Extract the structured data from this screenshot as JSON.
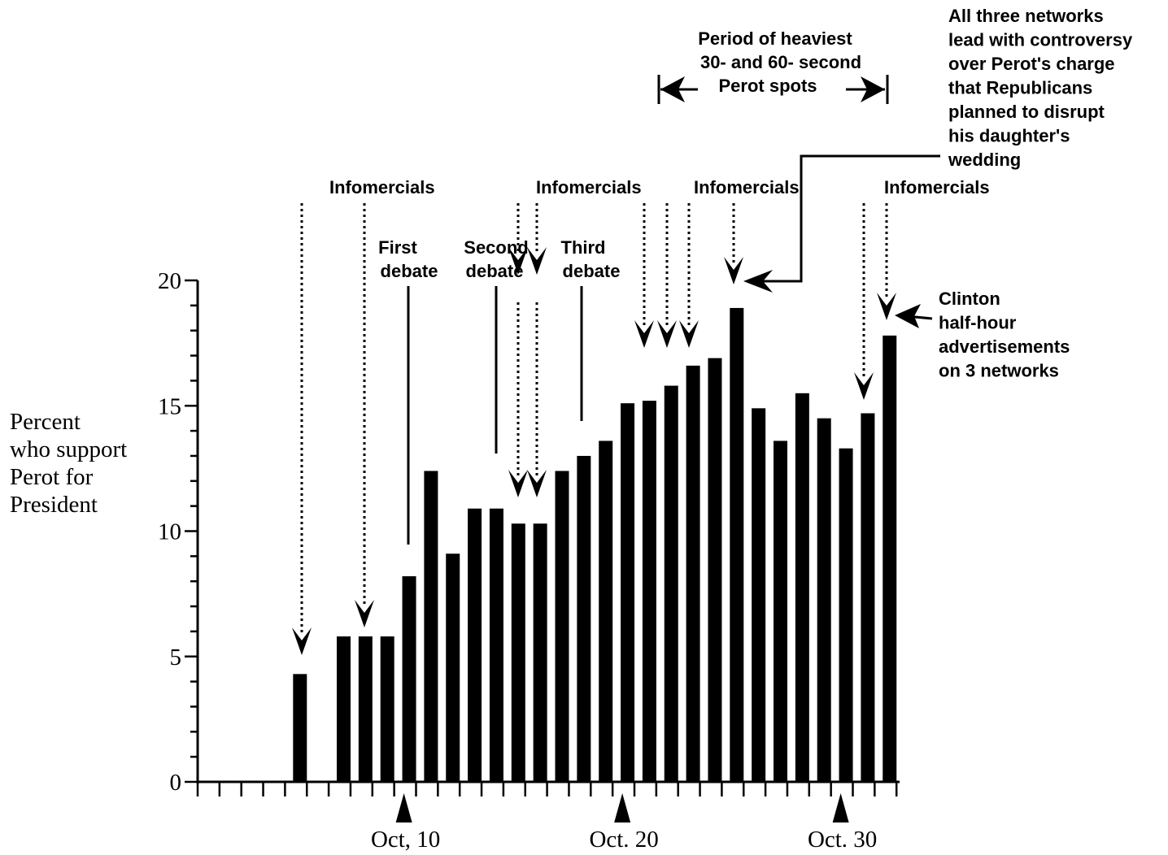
{
  "chart_data": {
    "type": "bar",
    "ylabel": [
      "Percent",
      "who support",
      "Perot for",
      "President"
    ],
    "ylim": [
      0,
      20
    ],
    "yticks": [
      "0",
      "5",
      "10",
      "15",
      "20"
    ],
    "x_dates": [
      "Oct. 5",
      "Oct. 6",
      "Oct. 7",
      "Oct. 8",
      "Oct. 9",
      "Oct. 10",
      "Oct. 11",
      "Oct. 12",
      "Oct. 13",
      "Oct. 14",
      "Oct. 15",
      "Oct. 16",
      "Oct. 17",
      "Oct. 18",
      "Oct. 19",
      "Oct. 20",
      "Oct. 21",
      "Oct. 22",
      "Oct. 23",
      "Oct. 24",
      "Oct. 25",
      "Oct. 26",
      "Oct. 27",
      "Oct. 28",
      "Oct. 29",
      "Oct. 30",
      "Oct. 31",
      "Nov. 1"
    ],
    "xtick_labels": [
      {
        "date": "Oct. 10",
        "label": "Oct, 10"
      },
      {
        "date": "Oct. 20",
        "label": "Oct. 20"
      },
      {
        "date": "Oct. 30",
        "label": "Oct. 30"
      }
    ],
    "bars": [
      {
        "date": "Oct. 5",
        "value": 4.3
      },
      {
        "date": "Oct. 7",
        "value": 5.8
      },
      {
        "date": "Oct. 8",
        "value": 5.8
      },
      {
        "date": "Oct. 9",
        "value": 5.8
      },
      {
        "date": "Oct. 10",
        "value": 8.2
      },
      {
        "date": "Oct. 11",
        "value": 12.4
      },
      {
        "date": "Oct. 12",
        "value": 9.1
      },
      {
        "date": "Oct. 13",
        "value": 10.9
      },
      {
        "date": "Oct. 14",
        "value": 10.9
      },
      {
        "date": "Oct. 15",
        "value": 10.3
      },
      {
        "date": "Oct. 16",
        "value": 10.3
      },
      {
        "date": "Oct. 17",
        "value": 12.4
      },
      {
        "date": "Oct. 18",
        "value": 13.0
      },
      {
        "date": "Oct. 19",
        "value": 13.6
      },
      {
        "date": "Oct. 20",
        "value": 15.1
      },
      {
        "date": "Oct. 21",
        "value": 15.2
      },
      {
        "date": "Oct. 22",
        "value": 15.8
      },
      {
        "date": "Oct. 23",
        "value": 16.6
      },
      {
        "date": "Oct. 24",
        "value": 16.9
      },
      {
        "date": "Oct. 25",
        "value": 18.9
      },
      {
        "date": "Oct. 26",
        "value": 14.9
      },
      {
        "date": "Oct. 27",
        "value": 13.6
      },
      {
        "date": "Oct. 28",
        "value": 15.5
      },
      {
        "date": "Oct. 29",
        "value": 14.5
      },
      {
        "date": "Oct. 30",
        "value": 13.3
      },
      {
        "date": "Oct. 31",
        "value": 14.7
      },
      {
        "date": "Nov. 1",
        "value": 17.8
      }
    ],
    "annotations": {
      "infomercials": "Infomercials",
      "first_debate": "First debate",
      "second_debate": "Second debate",
      "third_debate": "Third debate",
      "heaviest_spots": [
        "Period of heaviest",
        "30- and 60- second",
        "Perot spots"
      ],
      "controversy": [
        "All three networks",
        "lead with controversy",
        "over Perot's charge",
        "that Republicans",
        "planned to disrupt",
        "his daughter's",
        "wedding"
      ],
      "clinton": [
        "Clinton",
        "half-hour",
        "advertisements",
        "on 3 networks"
      ]
    }
  }
}
